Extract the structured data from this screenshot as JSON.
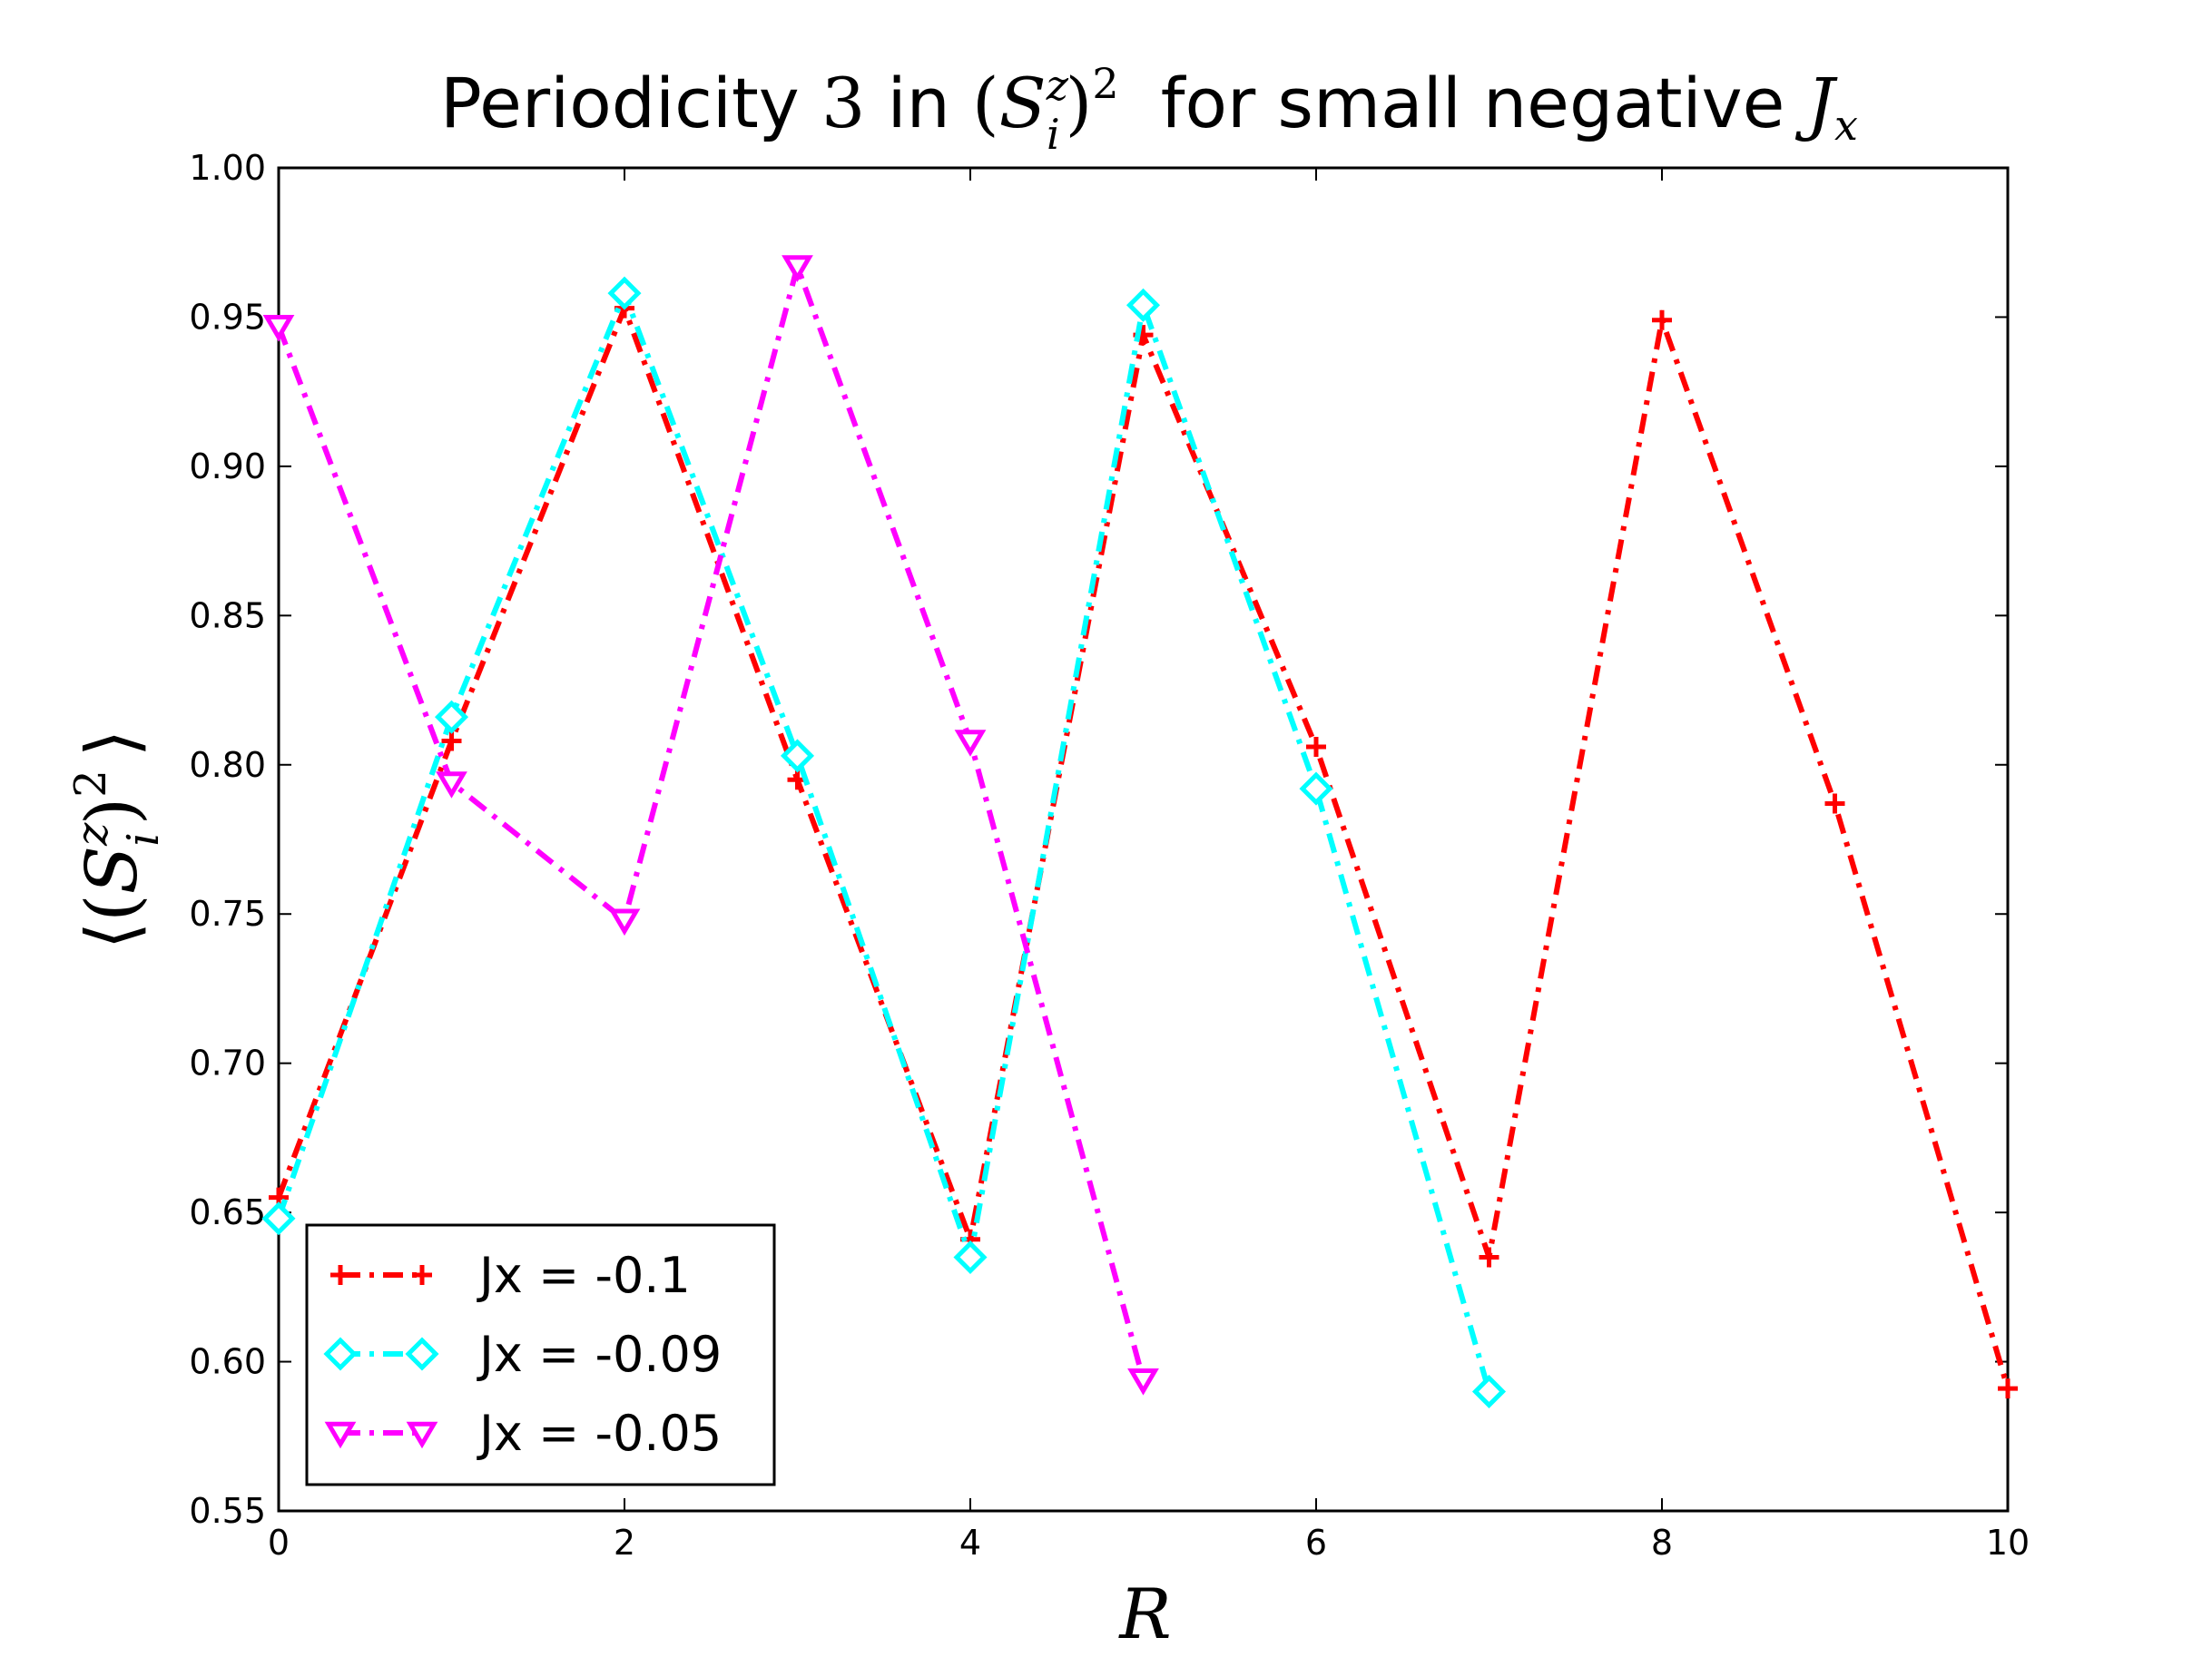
{
  "chart_data": {
    "type": "line",
    "title": {
      "prefix": "Periodicity",
      "number": "3",
      "mid": "in",
      "expr_open": "(",
      "expr_S": "S",
      "expr_sup": "z",
      "expr_sub": "i",
      "expr_close": ")",
      "expr_pow": "2",
      "suffix": "for small negative",
      "var_main": "J",
      "var_sub": "x"
    },
    "xlabel": "R",
    "ylabel": {
      "open_angle": "⟨",
      "open": "(",
      "S": "S",
      "sup": "z",
      "sub": "i",
      "close": ")",
      "pow": "2",
      "close_angle": "⟩"
    },
    "xlim": [
      0,
      10
    ],
    "ylim": [
      0.55,
      1.0
    ],
    "xticks": [
      "0",
      "2",
      "4",
      "6",
      "8",
      "10"
    ],
    "yticks": [
      "0.55",
      "0.60",
      "0.65",
      "0.70",
      "0.75",
      "0.80",
      "0.85",
      "0.90",
      "0.95",
      "1.00"
    ],
    "legend_position": "lower-left",
    "grid": false,
    "series": [
      {
        "name": "Jx = -0.1",
        "color": "#ff0000",
        "marker": "plus",
        "x": [
          0,
          1,
          2,
          3,
          4,
          5,
          6,
          7,
          8,
          9,
          10
        ],
        "y": [
          0.655,
          0.808,
          0.953,
          0.795,
          0.641,
          0.944,
          0.806,
          0.635,
          0.949,
          0.787,
          0.591
        ]
      },
      {
        "name": "Jx = -0.09",
        "color": "#00ffff",
        "marker": "diamond",
        "x": [
          0,
          1,
          2,
          3,
          4,
          5,
          6,
          7
        ],
        "y": [
          0.648,
          0.816,
          0.958,
          0.803,
          0.635,
          0.954,
          0.792,
          0.59
        ]
      },
      {
        "name": "Jx = -0.05",
        "color": "#ff00ff",
        "marker": "triangle-down",
        "x": [
          0,
          1,
          2,
          3,
          4,
          5
        ],
        "y": [
          0.947,
          0.794,
          0.748,
          0.967,
          0.808,
          0.594
        ]
      }
    ]
  }
}
